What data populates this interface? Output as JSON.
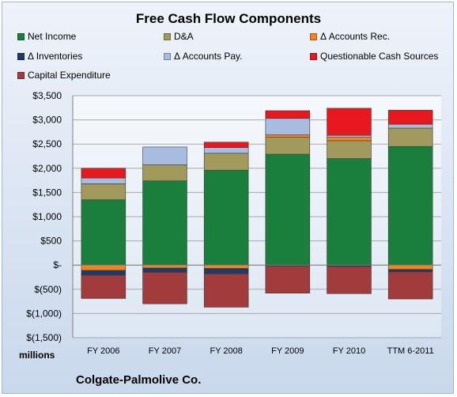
{
  "chart_data": {
    "type": "bar",
    "stacked": true,
    "title": "Free Cash Flow Components",
    "categories": [
      "FY 2006",
      "FY 2007",
      "FY 2008",
      "FY 2009",
      "FY 2010",
      "TTM 6-2011"
    ],
    "ylim": [
      -1500,
      3500
    ],
    "yticks": [
      3500,
      3000,
      2500,
      2000,
      1500,
      1000,
      500,
      0,
      -500,
      -1000,
      -1500
    ],
    "ytick_labels": [
      "$3,500",
      "$3,000",
      "$2,500",
      "$2,000",
      "$1,500",
      "$1,000",
      "$500",
      "$-",
      "$(500)",
      "$(1,000)",
      "$(1,500)"
    ],
    "grid": true,
    "legend": "top",
    "units_label": "millions",
    "series": [
      {
        "name": "Net Income",
        "color": "#1a7f3c",
        "values": [
          1350,
          1740,
          1960,
          2290,
          2200,
          2450
        ]
      },
      {
        "name": "D&A",
        "color": "#a29a5c",
        "values": [
          330,
          330,
          350,
          350,
          370,
          380
        ]
      },
      {
        "name": "Δ Accounts Rec.",
        "color": "#f58220",
        "values": [
          -110,
          -60,
          -70,
          50,
          70,
          -90
        ]
      },
      {
        "name": "Δ Inventories",
        "color": "#1f3a68",
        "values": [
          -100,
          -90,
          -110,
          -20,
          -30,
          -50
        ]
      },
      {
        "name": "Δ Accounts Pay.",
        "color": "#a7bde0",
        "values": [
          120,
          370,
          120,
          340,
          40,
          80
        ]
      },
      {
        "name": "Questionable Cash Sources",
        "color": "#e8191e",
        "values": [
          200,
          0,
          110,
          160,
          560,
          290
        ]
      },
      {
        "name": "Capital Expenditure",
        "color": "#a23b3b",
        "values": [
          -480,
          -650,
          -690,
          -560,
          -560,
          -560
        ]
      }
    ]
  },
  "footer": {
    "units": "millions",
    "company": "Colgate-Palmolive Co."
  }
}
